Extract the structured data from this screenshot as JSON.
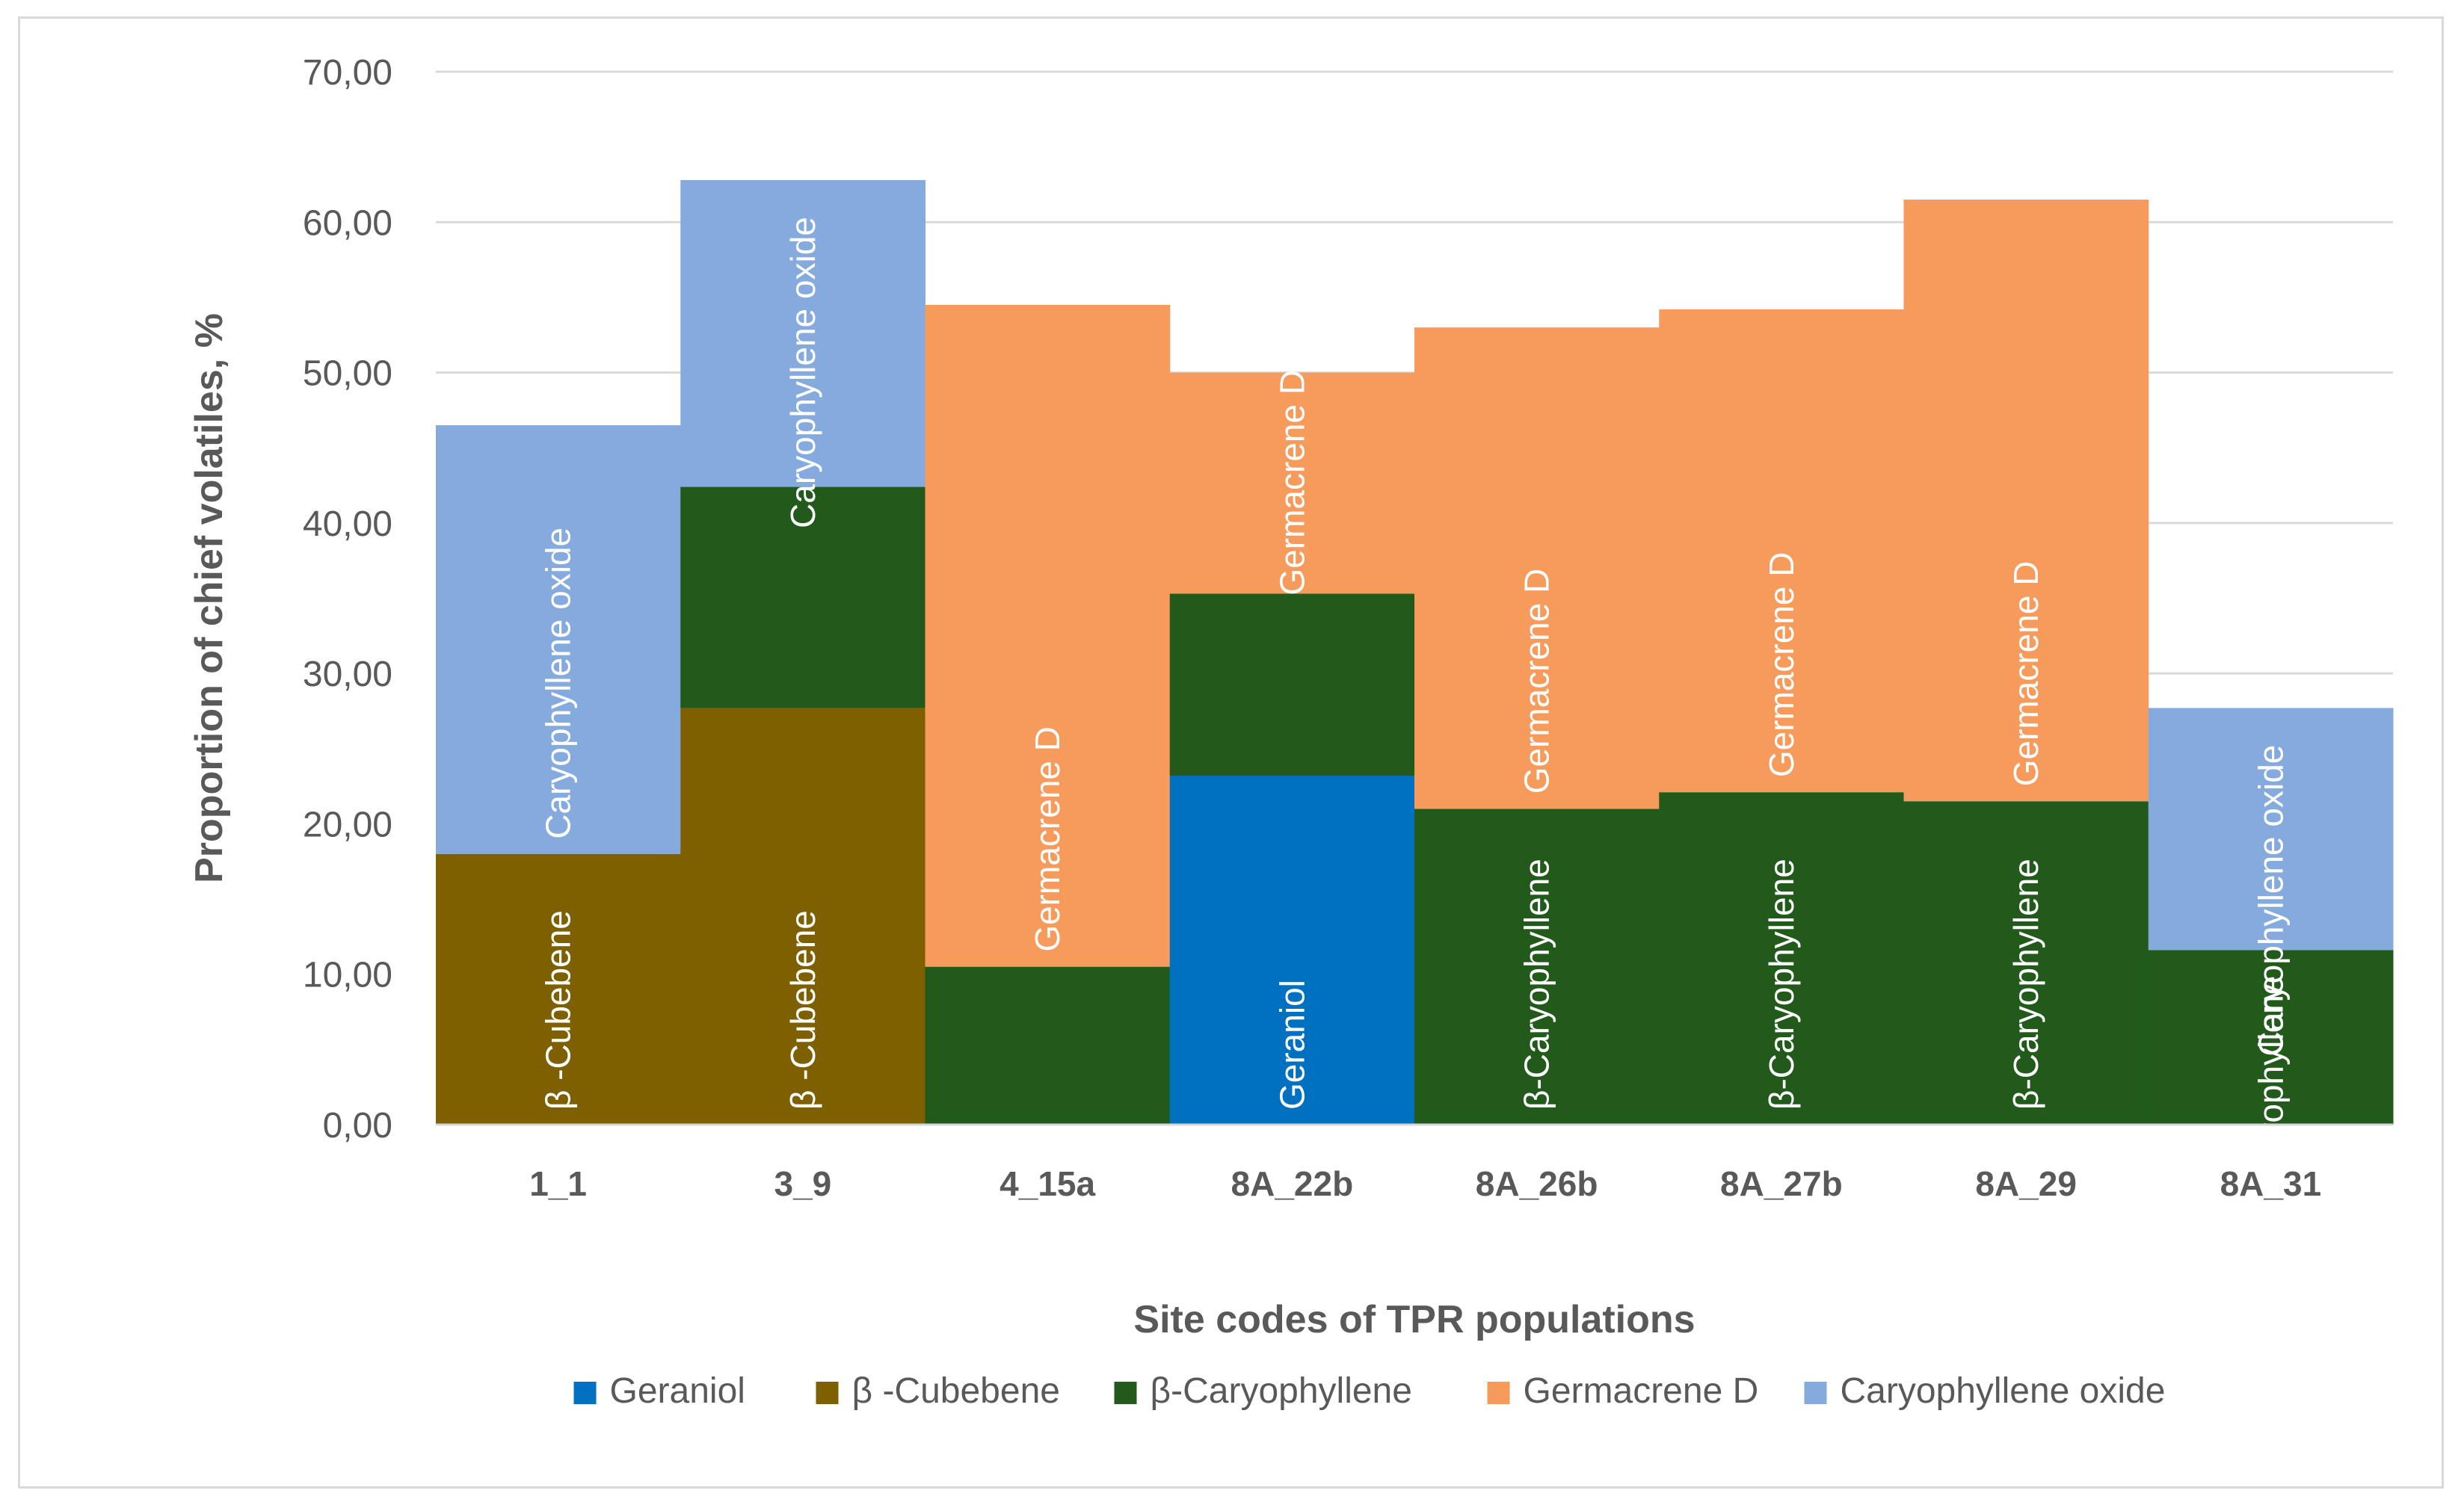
{
  "chart_data": {
    "type": "bar",
    "subtype": "stacked",
    "title": "",
    "xlabel": "Site codes of TPR populations",
    "ylabel": "Proportion of chief volatiles, %",
    "ylim": [
      0,
      70
    ],
    "yticks": [
      "0,00",
      "10,00",
      "20,00",
      "30,00",
      "40,00",
      "50,00",
      "60,00",
      "70,00"
    ],
    "grid": true,
    "legend_position": "bottom",
    "categories": [
      "1_1",
      "3_9",
      "4_15a",
      "8A_22b",
      "8A_26b",
      "8A_27b",
      "8A_29",
      "8A_31"
    ],
    "series": [
      {
        "name": "Geraniol",
        "color": "#0070C0",
        "values": [
          0,
          0,
          0,
          23.2,
          0,
          0,
          0,
          0
        ]
      },
      {
        "name": "β -Cubebene",
        "color": "#7F6000",
        "values": [
          18.0,
          27.7,
          0,
          0,
          0,
          0,
          0,
          0
        ]
      },
      {
        "name": "β-Caryophyllene",
        "color": "#215A1A",
        "values": [
          0,
          14.7,
          10.5,
          12.1,
          21.0,
          22.1,
          21.5,
          11.6
        ]
      },
      {
        "name": "Germacrene D",
        "color": "#F79B5C",
        "values": [
          0,
          0,
          44.0,
          14.7,
          32.0,
          32.1,
          40.0,
          0
        ]
      },
      {
        "name": "Caryophyllene oxide",
        "color": "#85ABDE",
        "values": [
          28.5,
          20.4,
          0,
          0,
          0,
          0,
          0,
          16.1
        ]
      }
    ],
    "segment_labels": [
      {
        "category": "1_1",
        "series": "β -Cubebene",
        "text": "β -Cubebene"
      },
      {
        "category": "1_1",
        "series": "Caryophyllene oxide",
        "text": "Caryophyllene oxide"
      },
      {
        "category": "3_9",
        "series": "β -Cubebene",
        "text": "β -Cubebene"
      },
      {
        "category": "3_9",
        "series": "Caryophyllene oxide",
        "text": "Caryophyllene oxide"
      },
      {
        "category": "4_15a",
        "series": "Germacrene D",
        "text": "Germacrene D"
      },
      {
        "category": "8A_22b",
        "series": "Geraniol",
        "text": "Geraniol"
      },
      {
        "category": "8A_22b",
        "series": "Germacrene D",
        "text": "Germacrene D"
      },
      {
        "category": "8A_26b",
        "series": "β-Caryophyllene",
        "text": "β-Caryophyllene"
      },
      {
        "category": "8A_26b",
        "series": "Germacrene D",
        "text": "Germacrene D"
      },
      {
        "category": "8A_27b",
        "series": "β-Caryophyllene",
        "text": "β-Caryophyllene"
      },
      {
        "category": "8A_27b",
        "series": "Germacrene D",
        "text": "Germacrene D"
      },
      {
        "category": "8A_29",
        "series": "β-Caryophyllene",
        "text": "β-Caryophyllene"
      },
      {
        "category": "8A_29",
        "series": "Germacrene D",
        "text": "Germacrene D"
      },
      {
        "category": "8A_31",
        "series": "β-Caryophyllene",
        "text": "β-Caryophyllene"
      },
      {
        "category": "8A_31",
        "series": "Caryophyllene oxide",
        "text": "Caryophyllene oxide"
      }
    ]
  }
}
